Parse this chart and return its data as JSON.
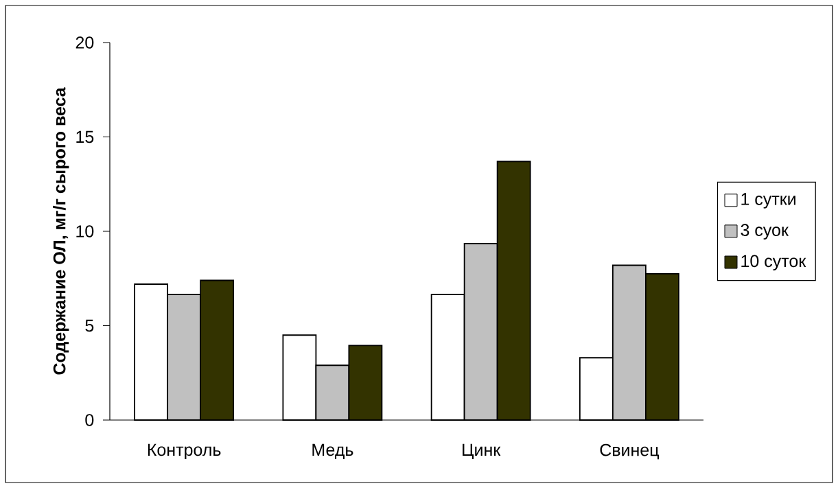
{
  "chart_data": {
    "type": "bar",
    "ylabel": "Содержание ОЛ, мг/г сырого веса",
    "categories": [
      "Контроль",
      "Медь",
      "Цинк",
      "Свинец"
    ],
    "series": [
      {
        "name": "1 сутки",
        "color": "#ffffff",
        "values": [
          7.2,
          4.5,
          6.65,
          3.3
        ]
      },
      {
        "name": "3 суок",
        "color": "#c0c0c0",
        "values": [
          6.65,
          2.9,
          9.35,
          8.2
        ]
      },
      {
        "name": "10 суток",
        "color": "#333300",
        "values": [
          7.4,
          3.95,
          13.7,
          7.75
        ]
      }
    ],
    "ylim": [
      0,
      20
    ],
    "yticks": [
      0,
      5,
      10,
      15,
      20
    ],
    "legend": "right",
    "grid": false
  }
}
